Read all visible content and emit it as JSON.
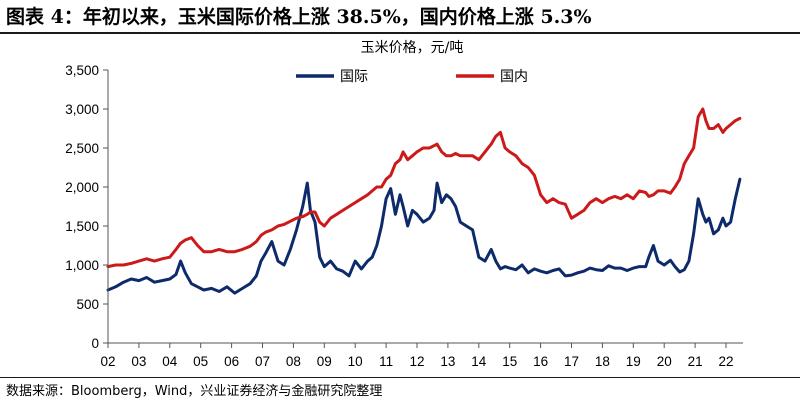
{
  "figure_title": "图表 4：年初以来，玉米国际价格上涨 38.5%，国内价格上涨 5.3%",
  "source_note": "数据来源：Bloomberg，Wind，兴业证券经济与金融研究院整理",
  "chart_data": {
    "type": "line",
    "title": "玉米价格，元/吨",
    "xlabel": "",
    "ylabel": "",
    "ylim": [
      0,
      3500
    ],
    "xlim": [
      2002.0,
      2022.55
    ],
    "y_ticks": [
      0,
      500,
      1000,
      1500,
      2000,
      2500,
      3000,
      3500
    ],
    "y_tick_labels": [
      "0",
      "500",
      "1,000",
      "1,500",
      "2,000",
      "2,500",
      "3,000",
      "3,500"
    ],
    "x_ticks": [
      2002,
      2003,
      2004,
      2005,
      2006,
      2007,
      2008,
      2009,
      2010,
      2011,
      2012,
      2013,
      2014,
      2015,
      2016,
      2017,
      2018,
      2019,
      2020,
      2021,
      2022
    ],
    "x_tick_labels": [
      "02",
      "03",
      "04",
      "05",
      "06",
      "07",
      "08",
      "09",
      "10",
      "11",
      "12",
      "13",
      "14",
      "15",
      "16",
      "17",
      "18",
      "19",
      "20",
      "21",
      "22"
    ],
    "grid": false,
    "legend_position": "top-center",
    "series": [
      {
        "name": "国际",
        "color": "#0d2a6b",
        "x": [
          2002.0,
          2002.25,
          2002.5,
          2002.75,
          2003.0,
          2003.25,
          2003.5,
          2003.75,
          2004.0,
          2004.2,
          2004.35,
          2004.5,
          2004.7,
          2004.9,
          2005.1,
          2005.35,
          2005.6,
          2005.85,
          2006.1,
          2006.35,
          2006.6,
          2006.8,
          2006.95,
          2007.1,
          2007.3,
          2007.5,
          2007.7,
          2007.9,
          2008.1,
          2008.3,
          2008.45,
          2008.55,
          2008.7,
          2008.85,
          2009.0,
          2009.2,
          2009.4,
          2009.6,
          2009.8,
          2010.0,
          2010.2,
          2010.4,
          2010.55,
          2010.7,
          2010.85,
          2011.0,
          2011.15,
          2011.3,
          2011.45,
          2011.55,
          2011.7,
          2011.85,
          2012.0,
          2012.2,
          2012.4,
          2012.55,
          2012.65,
          2012.8,
          2012.95,
          2013.1,
          2013.25,
          2013.4,
          2013.6,
          2013.8,
          2014.0,
          2014.2,
          2014.4,
          2014.55,
          2014.7,
          2014.85,
          2015.0,
          2015.2,
          2015.4,
          2015.6,
          2015.8,
          2016.0,
          2016.2,
          2016.4,
          2016.6,
          2016.8,
          2017.0,
          2017.2,
          2017.4,
          2017.6,
          2017.8,
          2018.0,
          2018.2,
          2018.4,
          2018.6,
          2018.8,
          2019.0,
          2019.2,
          2019.4,
          2019.5,
          2019.65,
          2019.8,
          2020.0,
          2020.2,
          2020.35,
          2020.5,
          2020.65,
          2020.8,
          2020.95,
          2021.1,
          2021.25,
          2021.35,
          2021.45,
          2021.6,
          2021.75,
          2021.9,
          2022.0,
          2022.15,
          2022.3,
          2022.45
        ],
        "values": [
          680,
          720,
          780,
          820,
          800,
          840,
          780,
          800,
          820,
          880,
          1050,
          900,
          760,
          720,
          680,
          700,
          660,
          720,
          640,
          700,
          760,
          860,
          1050,
          1150,
          1300,
          1050,
          1000,
          1200,
          1450,
          1750,
          2050,
          1700,
          1550,
          1100,
          980,
          1050,
          950,
          920,
          860,
          1050,
          950,
          1050,
          1100,
          1250,
          1500,
          1850,
          1980,
          1650,
          1900,
          1750,
          1500,
          1700,
          1650,
          1550,
          1600,
          1700,
          2050,
          1800,
          1900,
          1850,
          1750,
          1550,
          1500,
          1450,
          1100,
          1050,
          1200,
          1050,
          950,
          980,
          960,
          940,
          1000,
          900,
          950,
          920,
          900,
          930,
          950,
          860,
          870,
          900,
          920,
          960,
          940,
          930,
          990,
          960,
          960,
          930,
          960,
          980,
          980,
          1100,
          1250,
          1050,
          1000,
          1060,
          980,
          910,
          940,
          1050,
          1400,
          1850,
          1650,
          1550,
          1600,
          1400,
          1450,
          1600,
          1500,
          1550,
          1850,
          2100
        ]
      },
      {
        "name": "国内",
        "color": "#cc1a1a",
        "x": [
          2002.0,
          2002.25,
          2002.5,
          2002.75,
          2003.0,
          2003.25,
          2003.5,
          2003.75,
          2004.0,
          2004.2,
          2004.35,
          2004.5,
          2004.7,
          2004.9,
          2005.1,
          2005.35,
          2005.6,
          2005.85,
          2006.1,
          2006.35,
          2006.6,
          2006.8,
          2006.95,
          2007.1,
          2007.3,
          2007.5,
          2007.7,
          2007.9,
          2008.1,
          2008.3,
          2008.45,
          2008.55,
          2008.7,
          2008.85,
          2009.0,
          2009.2,
          2009.4,
          2009.6,
          2009.8,
          2010.0,
          2010.2,
          2010.4,
          2010.55,
          2010.7,
          2010.85,
          2011.0,
          2011.15,
          2011.3,
          2011.45,
          2011.55,
          2011.7,
          2011.85,
          2012.0,
          2012.2,
          2012.4,
          2012.55,
          2012.65,
          2012.8,
          2012.95,
          2013.1,
          2013.25,
          2013.4,
          2013.6,
          2013.8,
          2014.0,
          2014.2,
          2014.4,
          2014.55,
          2014.7,
          2014.85,
          2015.0,
          2015.2,
          2015.4,
          2015.6,
          2015.8,
          2016.0,
          2016.2,
          2016.4,
          2016.6,
          2016.8,
          2017.0,
          2017.2,
          2017.4,
          2017.6,
          2017.8,
          2018.0,
          2018.2,
          2018.4,
          2018.6,
          2018.8,
          2019.0,
          2019.2,
          2019.4,
          2019.5,
          2019.65,
          2019.8,
          2020.0,
          2020.2,
          2020.35,
          2020.5,
          2020.65,
          2020.8,
          2020.95,
          2021.1,
          2021.25,
          2021.35,
          2021.45,
          2021.6,
          2021.75,
          2021.9,
          2022.0,
          2022.15,
          2022.3,
          2022.45
        ],
        "values": [
          980,
          1000,
          1000,
          1020,
          1050,
          1080,
          1050,
          1080,
          1100,
          1200,
          1280,
          1320,
          1350,
          1250,
          1170,
          1170,
          1200,
          1170,
          1170,
          1200,
          1240,
          1300,
          1380,
          1420,
          1450,
          1500,
          1520,
          1560,
          1600,
          1620,
          1650,
          1680,
          1680,
          1550,
          1500,
          1600,
          1650,
          1700,
          1750,
          1800,
          1850,
          1900,
          1950,
          2000,
          2000,
          2100,
          2150,
          2300,
          2350,
          2450,
          2350,
          2400,
          2450,
          2500,
          2500,
          2530,
          2550,
          2450,
          2400,
          2400,
          2430,
          2400,
          2400,
          2400,
          2350,
          2450,
          2550,
          2650,
          2700,
          2500,
          2450,
          2400,
          2300,
          2250,
          2150,
          1900,
          1800,
          1850,
          1800,
          1780,
          1600,
          1650,
          1700,
          1800,
          1850,
          1800,
          1850,
          1880,
          1850,
          1900,
          1850,
          1950,
          1930,
          1880,
          1900,
          1950,
          1950,
          1920,
          2000,
          2100,
          2300,
          2400,
          2500,
          2900,
          3000,
          2850,
          2750,
          2750,
          2800,
          2700,
          2750,
          2800,
          2850,
          2880
        ]
      }
    ]
  }
}
